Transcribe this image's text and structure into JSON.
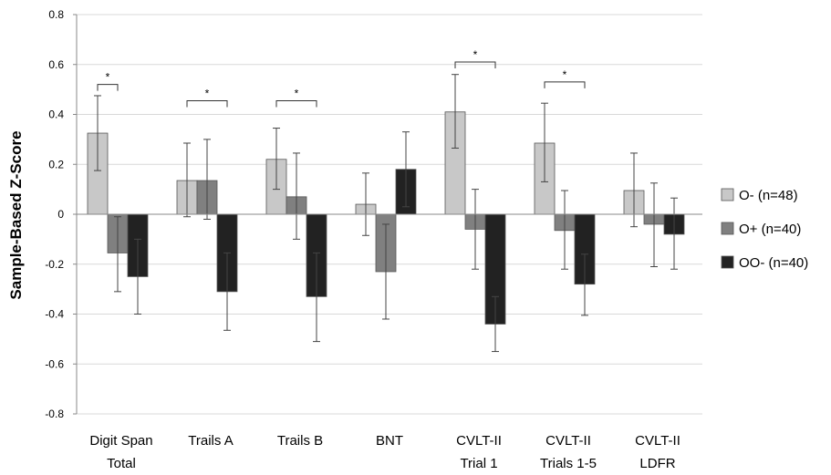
{
  "chart_data": {
    "type": "bar",
    "ylabel": "Sample-Based Z-Score",
    "xlabel": "",
    "ylim": [
      -0.8,
      0.8
    ],
    "yticks": [
      -0.8,
      -0.6,
      -0.4,
      -0.2,
      0,
      0.2,
      0.4,
      0.6,
      0.8
    ],
    "ytick_labels": [
      "-0.8",
      "-0.6",
      "-0.4",
      "-0.2",
      "0",
      "0.2",
      "0.4",
      "0.6",
      "0.8"
    ],
    "grid": true,
    "legend_position": "right",
    "categories": [
      [
        "Digit Span",
        "Total"
      ],
      [
        "Trails A"
      ],
      [
        "Trails B"
      ],
      [
        "BNT"
      ],
      [
        "CVLT-II",
        "Trial 1"
      ],
      [
        "CVLT-II",
        "Trials 1-5"
      ],
      [
        "CVLT-II",
        "LDFR"
      ]
    ],
    "series": [
      {
        "name": "O- (n=48)",
        "color": "#c8c8c8",
        "values": [
          0.325,
          0.135,
          0.22,
          0.04,
          0.41,
          0.285,
          0.095
        ],
        "err_low": [
          0.175,
          -0.01,
          0.1,
          -0.085,
          0.265,
          0.13,
          -0.05
        ],
        "err_high": [
          0.475,
          0.285,
          0.345,
          0.165,
          0.56,
          0.445,
          0.245
        ]
      },
      {
        "name": "O+ (n=40)",
        "color": "#808080",
        "values": [
          -0.155,
          0.135,
          0.07,
          -0.23,
          -0.06,
          -0.065,
          -0.04
        ],
        "err_low": [
          -0.31,
          -0.02,
          -0.1,
          -0.42,
          -0.22,
          -0.22,
          -0.21
        ],
        "err_high": [
          -0.01,
          0.3,
          0.245,
          -0.04,
          0.1,
          0.095,
          0.125
        ]
      },
      {
        "name": "OO- (n=40)",
        "color": "#222222",
        "values": [
          -0.25,
          -0.31,
          -0.33,
          0.18,
          -0.44,
          -0.28,
          -0.08
        ],
        "err_low": [
          -0.4,
          -0.465,
          -0.51,
          0.03,
          -0.55,
          -0.405,
          -0.22
        ],
        "err_high": [
          -0.1,
          -0.155,
          -0.155,
          0.33,
          -0.33,
          -0.16,
          0.065
        ]
      }
    ],
    "significance": [
      {
        "category": 0,
        "from_series": 0,
        "to_series": 1,
        "bracket_y": 0.52,
        "label": "*"
      },
      {
        "category": 1,
        "from_series": 0,
        "to_series": 2,
        "bracket_y": 0.455,
        "label": "*"
      },
      {
        "category": 2,
        "from_series": 0,
        "to_series": 2,
        "bracket_y": 0.455,
        "label": "*"
      },
      {
        "category": 4,
        "from_series": 0,
        "to_series": 2,
        "bracket_y": 0.61,
        "label": "*"
      },
      {
        "category": 5,
        "from_series": 0,
        "to_series": 2,
        "bracket_y": 0.53,
        "label": "*"
      }
    ]
  }
}
